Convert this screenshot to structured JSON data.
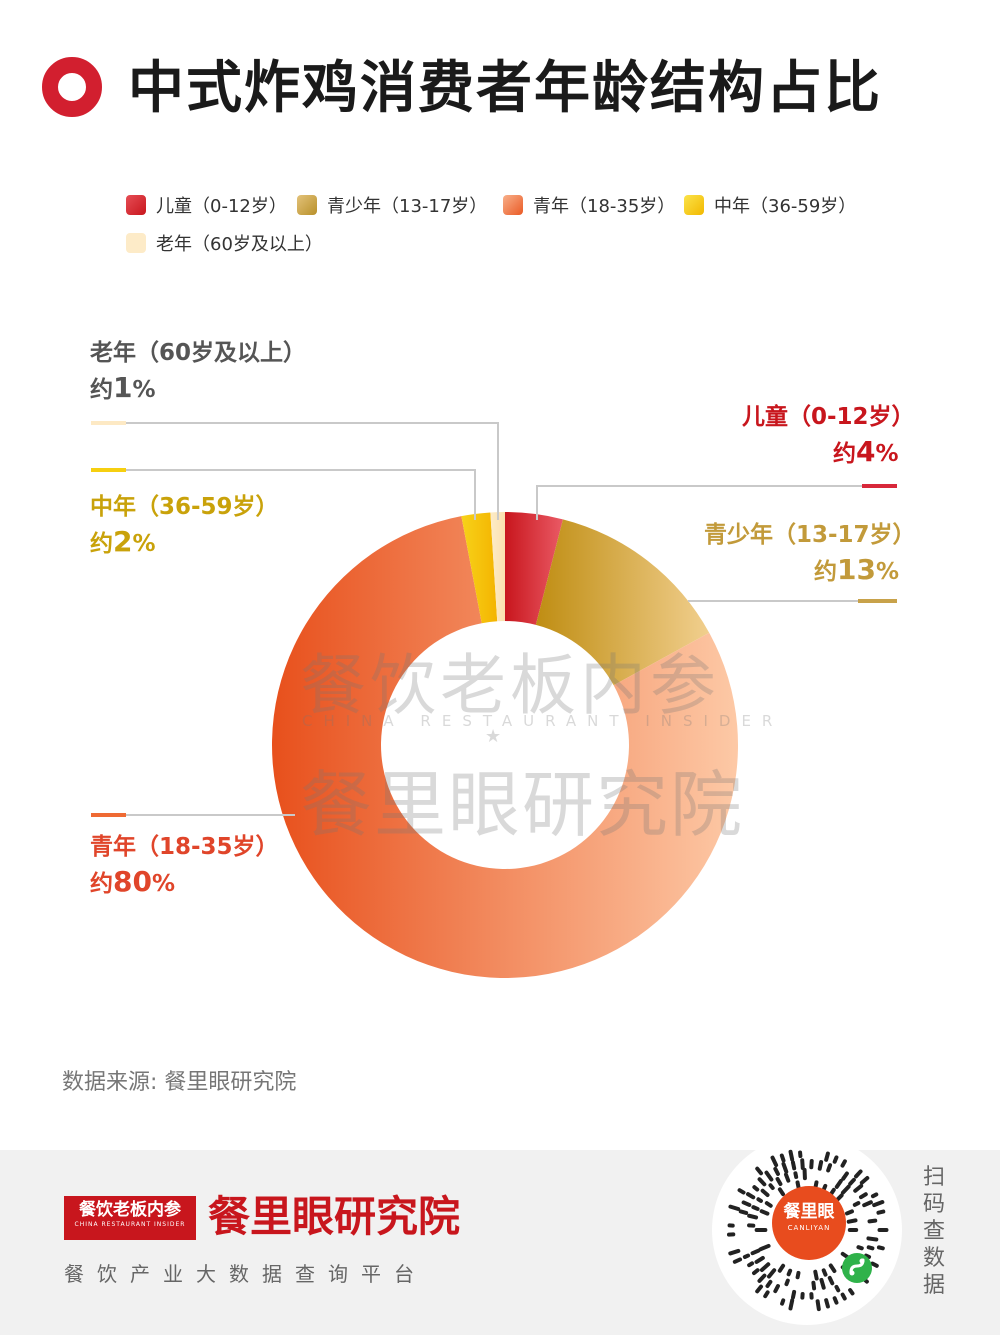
{
  "header": {
    "title": "中式炸鸡消费者年龄结构占比"
  },
  "chart_data": {
    "type": "pie",
    "title": "中式炸鸡消费者年龄结构占比",
    "unit": "%",
    "categories": [
      "儿童（0-12岁）",
      "青少年（13-17岁）",
      "青年（18-35岁）",
      "中年（36-59岁）",
      "老年（60岁及以上）"
    ],
    "values": [
      4,
      13,
      80,
      2,
      1
    ],
    "value_labels": [
      "约4%",
      "约13%",
      "约80%",
      "约2%",
      "约1%"
    ],
    "colors": [
      "#d8283a",
      "#c8a24a",
      "#ef6a33",
      "#f6cf10",
      "#fde9c4"
    ],
    "legend_position": "top-left",
    "donut": true
  },
  "legend": {
    "items": [
      {
        "label": "儿童（0-12岁）",
        "color": "#d8283a"
      },
      {
        "label": "青少年（13-17岁）",
        "color": "#c8a24a"
      },
      {
        "label": "青年（18-35岁）",
        "color": "#ef6a33"
      },
      {
        "label": "中年（36-59岁）",
        "color": "#f6cf10"
      },
      {
        "label": "老年（60岁及以上）",
        "color": "#fde9c4"
      }
    ]
  },
  "labels": {
    "child": {
      "name": "儿童（0-12岁）",
      "prefix": "约",
      "value": "4",
      "suffix": "%",
      "color": "#c8161d"
    },
    "teen": {
      "name": "青少年（13-17岁）",
      "prefix": "约",
      "value": "13",
      "suffix": "%",
      "color": "#c29a3a"
    },
    "youth": {
      "name": "青年（18-35岁）",
      "prefix": "约",
      "value": "80",
      "suffix": "%",
      "color": "#e0452a"
    },
    "middle": {
      "name": "中年（36-59岁）",
      "prefix": "约",
      "value": "2",
      "suffix": "%",
      "color": "#c9a20a"
    },
    "elder": {
      "name": "老年（60岁及以上）",
      "prefix": "约",
      "value": "1",
      "suffix": "%",
      "color": "#555555"
    }
  },
  "watermark": {
    "line1": "餐饮老板内参",
    "line2": "CHINA RESTAURANT INSIDER",
    "line3": "餐里眼研究院"
  },
  "source": {
    "text": "数据来源: 餐里眼研究院"
  },
  "footer": {
    "brand_box_cn": "餐饮老板内参",
    "brand_box_en": "CHINA RESTAURANT INSIDER",
    "brand": "餐里眼研究院",
    "tagline": "餐饮产业大数据查询平台",
    "qr_center_cn": "餐里眼",
    "qr_center_en": "CANLIYAN",
    "scan_text": "扫码查数据"
  }
}
